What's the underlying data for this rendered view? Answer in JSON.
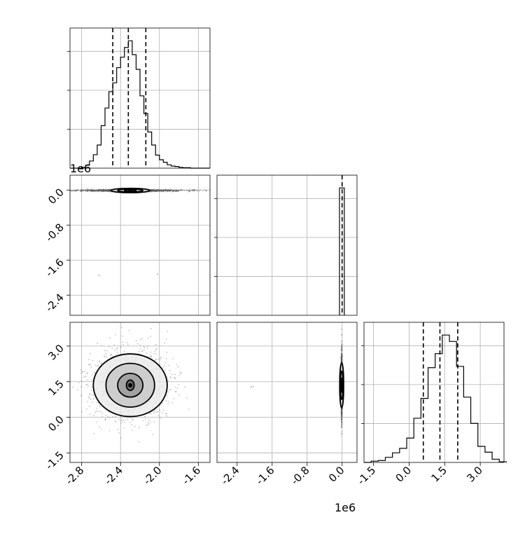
{
  "chart_data": {
    "type": "corner",
    "grid": true,
    "title": "",
    "parameters": [
      {
        "index": 0,
        "label": "",
        "range": [
          -2.92,
          -1.48
        ]
      },
      {
        "index": 1,
        "label": "",
        "range": [
          -2.86,
          0.34
        ],
        "scale_text": "1e6"
      },
      {
        "index": 2,
        "label": "",
        "range": [
          -1.9,
          4.0
        ]
      }
    ],
    "panels": [
      {
        "type": "histogram",
        "param": 0,
        "dashed_quantiles": [
          -2.48,
          -2.32,
          -2.14
        ],
        "bins": [
          -2.92,
          -2.88,
          -2.84,
          -2.8,
          -2.76,
          -2.72,
          -2.68,
          -2.64,
          -2.6,
          -2.56,
          -2.52,
          -2.48,
          -2.44,
          -2.4,
          -2.36,
          -2.32,
          -2.28,
          -2.24,
          -2.2,
          -2.16,
          -2.12,
          -2.08,
          -2.04,
          -2.0,
          -1.96,
          -1.92,
          -1.88,
          -1.84,
          -1.8,
          -1.76,
          -1.72,
          -1.68,
          -1.64,
          -1.6,
          -1.56,
          -1.52,
          -1.48
        ],
        "counts": [
          0,
          0,
          0,
          2,
          7,
          17,
          32,
          55,
          101,
          143,
          182,
          203,
          239,
          264,
          287,
          303,
          270,
          235,
          172,
          130,
          86,
          55,
          31,
          20,
          14,
          8,
          5,
          4,
          2,
          1,
          1,
          0,
          0,
          0,
          0,
          0
        ]
      },
      {
        "type": "histogram",
        "param": 1,
        "dashed_quantiles": [
          0.0
        ],
        "bins": [
          -0.06,
          0.0,
          0.05
        ],
        "counts": [
          301,
          301
        ]
      },
      {
        "type": "histogram",
        "param": 2,
        "dashed_quantiles": [
          0.6,
          1.3,
          2.05
        ],
        "bins": [
          -1.9,
          -1.6,
          -1.3,
          -1.0,
          -0.7,
          -0.4,
          -0.1,
          0.2,
          0.5,
          0.8,
          1.1,
          1.4,
          1.7,
          2.0,
          2.3,
          2.6,
          2.9,
          3.2,
          3.5,
          3.8,
          4.1
        ],
        "counts": [
          0,
          2,
          3,
          8,
          15,
          22,
          38,
          69,
          100,
          148,
          170,
          199,
          189,
          150,
          102,
          61,
          25,
          16,
          5,
          1
        ]
      },
      {
        "type": "2d",
        "x_param": 0,
        "y_param": 1,
        "center": [
          -2.3,
          -0.01
        ],
        "spread": [
          0.28,
          0.012
        ],
        "contours": [
          {
            "level": 1,
            "rx": 0.2,
            "ry": 0.05
          },
          {
            "level": 2,
            "rx": 0.13,
            "ry": 0.035
          },
          {
            "level": 3,
            "rx": 0.06,
            "ry": 0.02
          }
        ],
        "outliers": [
          [
            -2.62,
            -1.95
          ],
          [
            -2.02,
            -1.92
          ]
        ]
      },
      {
        "type": "2d",
        "x_param": 0,
        "y_param": 2,
        "center": [
          -2.3,
          1.35
        ],
        "spread": [
          0.2,
          0.75
        ],
        "contours": [
          {
            "level": 1,
            "rx": 0.38,
            "ry": 1.32
          },
          {
            "level": 2,
            "rx": 0.25,
            "ry": 0.92
          },
          {
            "level": 3,
            "rx": 0.13,
            "ry": 0.5
          },
          {
            "level": 4,
            "rx": 0.04,
            "ry": 0.22
          }
        ]
      },
      {
        "type": "2d",
        "x_param": 1,
        "y_param": 2,
        "center": [
          -0.01,
          1.35
        ],
        "spread": [
          0.006,
          0.7
        ],
        "contours": [
          {
            "level": 1,
            "rx": 0.045,
            "ry": 0.95
          },
          {
            "level": 2,
            "rx": 0.03,
            "ry": 0.6
          },
          {
            "level": 3,
            "rx": 0.015,
            "ry": 0.3
          }
        ],
        "outliers": [
          [
            -2.08,
            1.28
          ],
          [
            -2.03,
            1.3
          ]
        ]
      }
    ],
    "ticks": {
      "p0": [
        "-2.8",
        "-2.4",
        "-2.0",
        "-1.6"
      ],
      "p1": [
        "-2.4",
        "-1.6",
        "-0.8",
        "0.0"
      ],
      "p1_y": [
        "-2.4",
        "-1.6",
        "-0.8",
        "0.0"
      ],
      "p2": [
        "-1.5",
        "0.0",
        "1.5",
        "3.0"
      ],
      "p2_y": [
        "-1.5",
        "0.0",
        "1.5",
        "3.0"
      ]
    },
    "tick_values": {
      "p0": [
        -2.8,
        -2.4,
        -2.0,
        -1.6
      ],
      "p1": [
        -2.4,
        -1.6,
        -0.8,
        0.0
      ],
      "p2": [
        -1.5,
        0.0,
        1.5,
        3.0
      ]
    }
  }
}
